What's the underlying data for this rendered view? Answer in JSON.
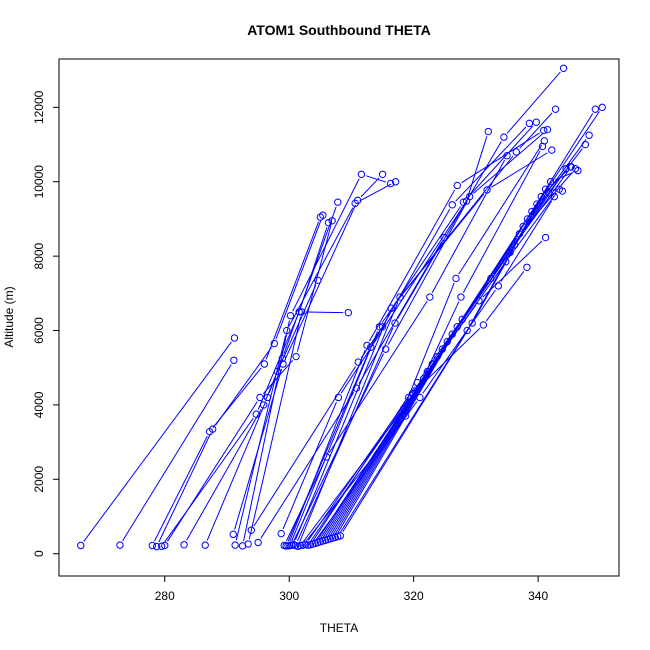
{
  "chart_data": {
    "type": "line",
    "title": "ATOM1 Southbound THETA",
    "xlabel": "THETA",
    "ylabel": "Altitude (m)",
    "xlim": [
      263,
      353
    ],
    "ylim": [
      -600,
      13300
    ],
    "x_ticks": [
      280,
      300,
      320,
      340
    ],
    "y_ticks": [
      0,
      2000,
      4000,
      6000,
      8000,
      10000,
      12000
    ],
    "grid": false,
    "legend": "none",
    "colors": {
      "series": "#0000ff",
      "axis": "#000000",
      "background": "#ffffff"
    },
    "series": [
      {
        "x": [
          266.5,
          291.2
        ],
        "y": [
          220,
          5800
        ]
      },
      {
        "x": [
          272.8,
          291.1
        ],
        "y": [
          230,
          5200
        ]
      },
      {
        "x": [
          278.0,
          287.2,
          296.0,
          305.0
        ],
        "y": [
          220,
          3280,
          5100,
          9050
        ]
      },
      {
        "x": [
          278.7,
          287.7,
          297.6,
          305.4
        ],
        "y": [
          190,
          3350,
          5650,
          9100
        ]
      },
      {
        "x": [
          279.5,
          294.7,
          301.6,
          306.3
        ],
        "y": [
          200,
          3750,
          6500,
          8900
        ]
      },
      {
        "x": [
          280.0,
          295.3,
          301.1,
          306.9
        ],
        "y": [
          220,
          4200,
          5300,
          8950
        ]
      },
      {
        "x": [
          283.1,
          295.9,
          298.1,
          304.6
        ],
        "y": [
          240,
          4000,
          4900,
          7350
        ]
      },
      {
        "x": [
          286.5,
          296.5,
          298.9,
          307.8
        ],
        "y": [
          230,
          4200,
          5250,
          9450
        ]
      },
      {
        "x": [
          291.0,
          299.0,
          311.0,
          315.0
        ],
        "y": [
          520,
          5100,
          9500,
          10200
        ]
      },
      {
        "x": [
          291.3,
          299.6,
          310.6,
          317.1
        ],
        "y": [
          230,
          6000,
          9420,
          10000
        ]
      },
      {
        "x": [
          292.5,
          300.2,
          311.6,
          316.3
        ],
        "y": [
          210,
          6400,
          10200,
          9950
        ]
      },
      {
        "x": [
          293.4,
          302.0,
          309.5
        ],
        "y": [
          260,
          6500,
          6480
        ]
      },
      {
        "x": [
          293.9,
          311.1,
          315.0
        ],
        "y": [
          630,
          5150,
          6100
        ]
      },
      {
        "x": [
          295.0,
          310.8,
          324.9
        ],
        "y": [
          300,
          4450,
          8500
        ]
      },
      {
        "x": [
          298.7,
          307.9,
          328.5,
          332.0
        ],
        "y": [
          540,
          4200,
          9480,
          11350
        ]
      },
      {
        "x": [
          299.2,
          306.0,
          322.6,
          335.0
        ],
        "y": [
          220,
          2600,
          6900,
          10700
        ]
      },
      {
        "x": [
          299.5,
          313.1,
          326.2,
          338.6
        ],
        "y": [
          210,
          5550,
          9380,
          11570
        ]
      },
      {
        "x": [
          299.8,
          312.5,
          327.0,
          340.9
        ],
        "y": [
          210,
          5600,
          9900,
          11380
        ]
      },
      {
        "x": [
          300.1,
          314.5,
          328.0,
          339.7
        ],
        "y": [
          220,
          6100,
          9450,
          11600
        ]
      },
      {
        "x": [
          300.4,
          315.5,
          329.0,
          341.5
        ],
        "y": [
          230,
          5500,
          9600,
          11400
        ]
      },
      {
        "x": [
          300.7,
          316.4,
          331.8,
          342.2
        ],
        "y": [
          250,
          6600,
          9780,
          10850
        ]
      },
      {
        "x": [
          301.0,
          317.0,
          334.5,
          344.1
        ],
        "y": [
          220,
          6200,
          11200,
          13050
        ]
      },
      {
        "x": [
          301.4,
          317.8,
          336.5,
          342.8
        ],
        "y": [
          200,
          6900,
          10800,
          11950
        ]
      },
      {
        "x": [
          301.8,
          318.4,
          326.8,
          341.0
        ],
        "y": [
          220,
          3900,
          7400,
          11100
        ]
      },
      {
        "x": [
          302.2,
          318.7,
          327.6,
          340.7
        ],
        "y": [
          230,
          3700,
          6900,
          10950
        ]
      },
      {
        "x": [
          302.6,
          319.2,
          330.5,
          341.2
        ],
        "y": [
          250,
          4200,
          6800,
          8500
        ]
      },
      {
        "x": [
          303.0,
          319.8,
          331.2,
          338.2
        ],
        "y": [
          230,
          4300,
          6150,
          7700
        ]
      },
      {
        "x": [
          303.4,
          320.6,
          332.4,
          341.7
        ],
        "y": [
          240,
          4600,
          7400,
          9700
        ]
      },
      {
        "x": [
          303.8,
          321.0,
          333.6,
          342.6
        ],
        "y": [
          260,
          4200,
          7200,
          9600
        ]
      },
      {
        "x": [
          304.2,
          321.6,
          334.8,
          343.4
        ],
        "y": [
          280,
          4700,
          7850,
          9800
        ]
      },
      {
        "x": [
          304.6,
          322.2,
          335.5,
          344.5
        ],
        "y": [
          300,
          4900,
          8100,
          10350
        ]
      },
      {
        "x": [
          305.0,
          323.0,
          336.2,
          345.3
        ],
        "y": [
          320,
          5100,
          8300,
          10400
        ]
      },
      {
        "x": [
          305.4,
          323.8,
          337.0,
          346.0
        ],
        "y": [
          340,
          5300,
          8600,
          10350
        ]
      },
      {
        "x": [
          305.8,
          324.6,
          337.6,
          347.6
        ],
        "y": [
          360,
          5500,
          8800,
          11000
        ]
      },
      {
        "x": [
          306.2,
          325.4,
          338.3,
          348.2
        ],
        "y": [
          380,
          5700,
          9000,
          11250
        ]
      },
      {
        "x": [
          306.6,
          326.2,
          339.0,
          349.2
        ],
        "y": [
          400,
          5900,
          9200,
          11950
        ]
      },
      {
        "x": [
          307.0,
          327.0,
          339.8,
          350.3
        ],
        "y": [
          420,
          6100,
          9400,
          12000
        ]
      },
      {
        "x": [
          307.4,
          327.8,
          340.5,
          345.2
        ],
        "y": [
          440,
          6300,
          9600,
          10400
        ]
      },
      {
        "x": [
          307.8,
          328.6,
          341.2,
          343.9
        ],
        "y": [
          460,
          6000,
          9800,
          9750
        ]
      },
      {
        "x": [
          308.2,
          329.4,
          342.0,
          346.4
        ],
        "y": [
          480,
          6200,
          10000,
          10300
        ]
      }
    ]
  }
}
